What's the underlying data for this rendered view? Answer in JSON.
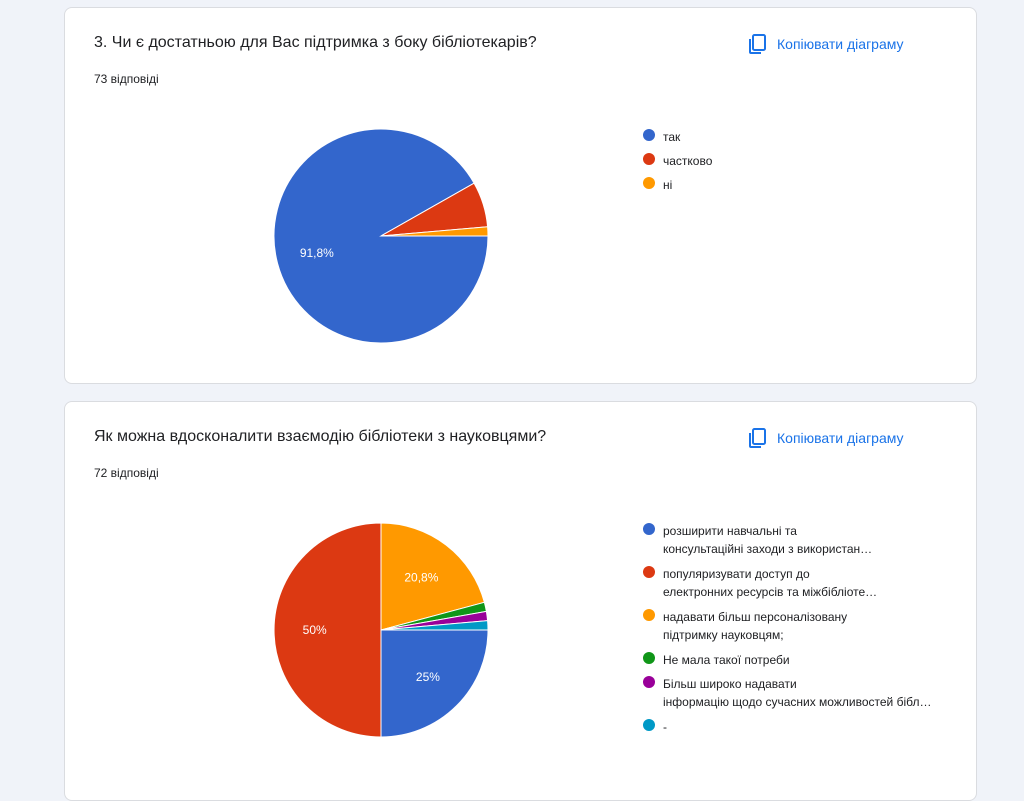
{
  "copy_label": "Копіювати діаграму",
  "card1": {
    "title": "3. Чи є достатньою для Вас підтримка з боку бібліотекарів?",
    "responses": "73 відповіді"
  },
  "card2": {
    "title": "Як можна вдосконалити взаємодію бібліотеки з науковцями?",
    "responses": "72 відповіді"
  },
  "chart_data": [
    {
      "type": "pie",
      "title": "3. Чи є достатньою для Вас підтримка з боку бібліотекарів?",
      "total_responses": 73,
      "legend_position": "right",
      "slices": [
        {
          "label": "так",
          "value": 67,
          "percent": 91.8,
          "pct_label": "91,8%",
          "color": "#3366cc"
        },
        {
          "label": "частково",
          "value": 5,
          "percent": 6.8,
          "pct_label": "",
          "color": "#dc3912"
        },
        {
          "label": "ні",
          "value": 1,
          "percent": 1.4,
          "pct_label": "",
          "color": "#ff9900"
        }
      ]
    },
    {
      "type": "pie",
      "title": "Як можна вдосконалити взаємодію бібліотеки з науковцями?",
      "total_responses": 72,
      "legend_position": "right",
      "slices": [
        {
          "label": "розширити навчальні та консультаційні заходи з використан…",
          "value": 18,
          "percent": 25,
          "pct_label": "25%",
          "color": "#3366cc"
        },
        {
          "label": "популяризувати доступ до електронних ресурсів та міжбібліоте…",
          "value": 36,
          "percent": 50,
          "pct_label": "50%",
          "color": "#dc3912"
        },
        {
          "label": "надавати більш персоналізовану підтримку науковцям;",
          "value": 15,
          "percent": 20.8,
          "pct_label": "20,8%",
          "color": "#ff9900"
        },
        {
          "label": "Не мала такої потреби",
          "value": 1,
          "percent": 1.4,
          "pct_label": "",
          "color": "#109618"
        },
        {
          "label": "Більш широко надавати інформацію щодо сучасних можливостей бібліот…",
          "value": 1,
          "percent": 1.4,
          "pct_label": "",
          "color": "#990099"
        },
        {
          "label": "-",
          "value": 1,
          "percent": 1.4,
          "pct_label": "",
          "color": "#0099c6"
        }
      ]
    }
  ]
}
